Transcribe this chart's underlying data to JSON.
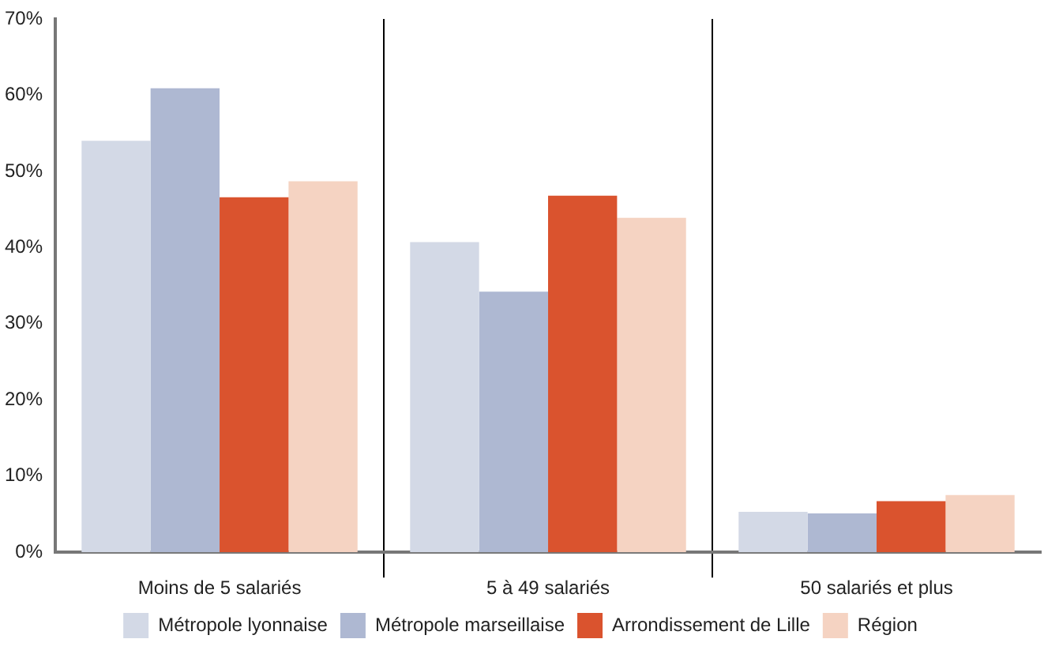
{
  "chart_data": {
    "type": "bar",
    "categories": [
      "Moins de 5 salariés",
      "5 à 49 salariés",
      "50 salariés et plus"
    ],
    "series": [
      {
        "name": "Métropole lyonnaise",
        "color": "#d3d9e6",
        "values": [
          54.0,
          40.7,
          5.3
        ]
      },
      {
        "name": "Métropole marseillaise",
        "color": "#aeb8d2",
        "values": [
          60.9,
          34.2,
          5.1
        ]
      },
      {
        "name": "Arrondissement de Lille",
        "color": "#da532e",
        "values": [
          46.6,
          46.8,
          6.7
        ]
      },
      {
        "name": "Région",
        "color": "#f5d3c2",
        "values": [
          48.7,
          43.9,
          7.5
        ]
      }
    ],
    "ylim": [
      0,
      70
    ],
    "yticks": [
      {
        "value": 0,
        "label": "0%"
      },
      {
        "value": 10,
        "label": "10%"
      },
      {
        "value": 20,
        "label": "20%"
      },
      {
        "value": 30,
        "label": "30%"
      },
      {
        "value": 40,
        "label": "40%"
      },
      {
        "value": 50,
        "label": "50%"
      },
      {
        "value": 60,
        "label": "60%"
      },
      {
        "value": 70,
        "label": "70%"
      }
    ],
    "legend": "bottom",
    "grid": false
  }
}
